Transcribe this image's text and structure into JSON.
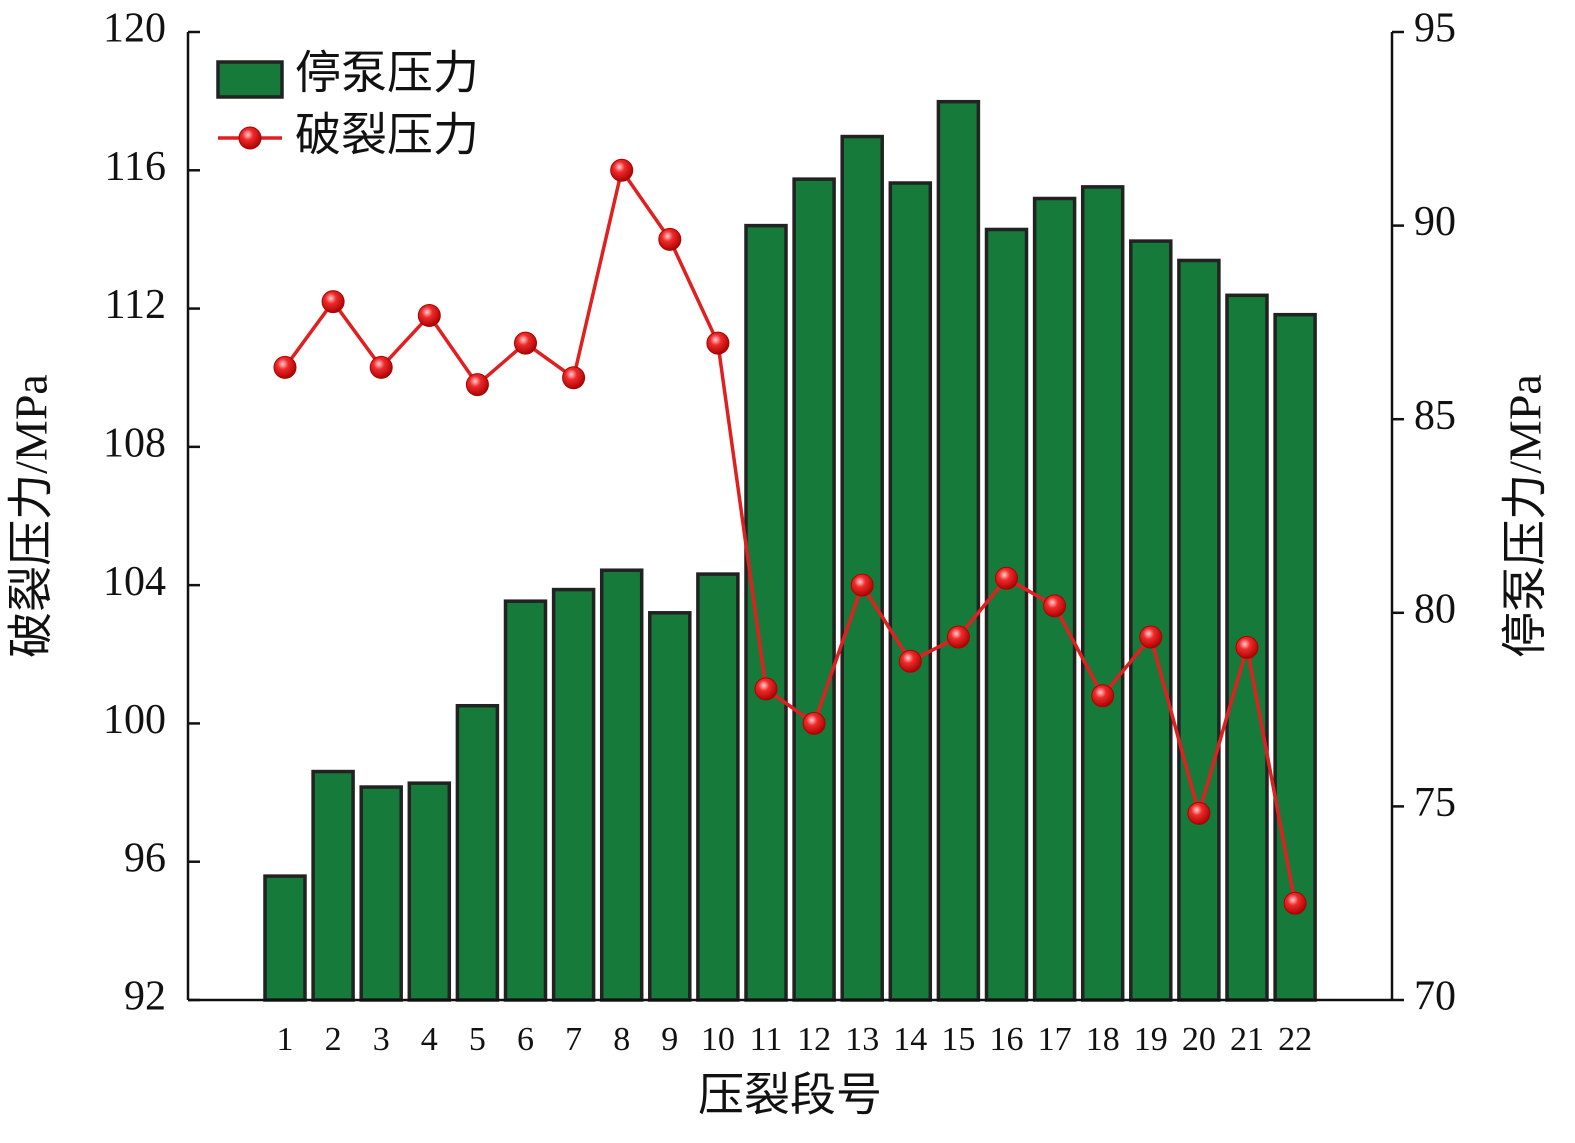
{
  "chart_data": {
    "type": "bar-line",
    "categories": [
      "1",
      "2",
      "3",
      "4",
      "5",
      "6",
      "7",
      "8",
      "9",
      "10",
      "11",
      "12",
      "13",
      "14",
      "15",
      "16",
      "17",
      "18",
      "19",
      "20",
      "21",
      "22"
    ],
    "xlabel": "压裂段号",
    "ylabel": "破裂压力/MPa",
    "y2label": "停泵压力/MPa",
    "ylim": [
      92,
      120
    ],
    "yticks": [
      92,
      96,
      100,
      104,
      108,
      112,
      116,
      120
    ],
    "y2lim": [
      70,
      95
    ],
    "y2ticks": [
      70,
      75,
      80,
      85,
      90,
      95
    ],
    "legend": "upper left",
    "series": [
      {
        "name": "停泵压力",
        "type": "bar",
        "axis": "y2",
        "color": "#157a3a",
        "values": [
          73.2,
          75.9,
          75.5,
          75.6,
          77.6,
          80.3,
          80.6,
          81.1,
          80.0,
          81.0,
          90.0,
          91.2,
          92.3,
          91.1,
          93.2,
          89.9,
          90.7,
          91.0,
          89.6,
          89.1,
          88.2,
          87.7
        ]
      },
      {
        "name": "破裂压力",
        "type": "line",
        "axis": "y",
        "color": "#e02020",
        "values": [
          110.3,
          112.2,
          110.3,
          111.8,
          109.8,
          111.0,
          110.0,
          116.0,
          114.0,
          111.0,
          101.0,
          100.0,
          104.0,
          101.8,
          102.5,
          104.2,
          103.4,
          100.8,
          102.5,
          97.4,
          102.2,
          94.8
        ]
      }
    ]
  }
}
